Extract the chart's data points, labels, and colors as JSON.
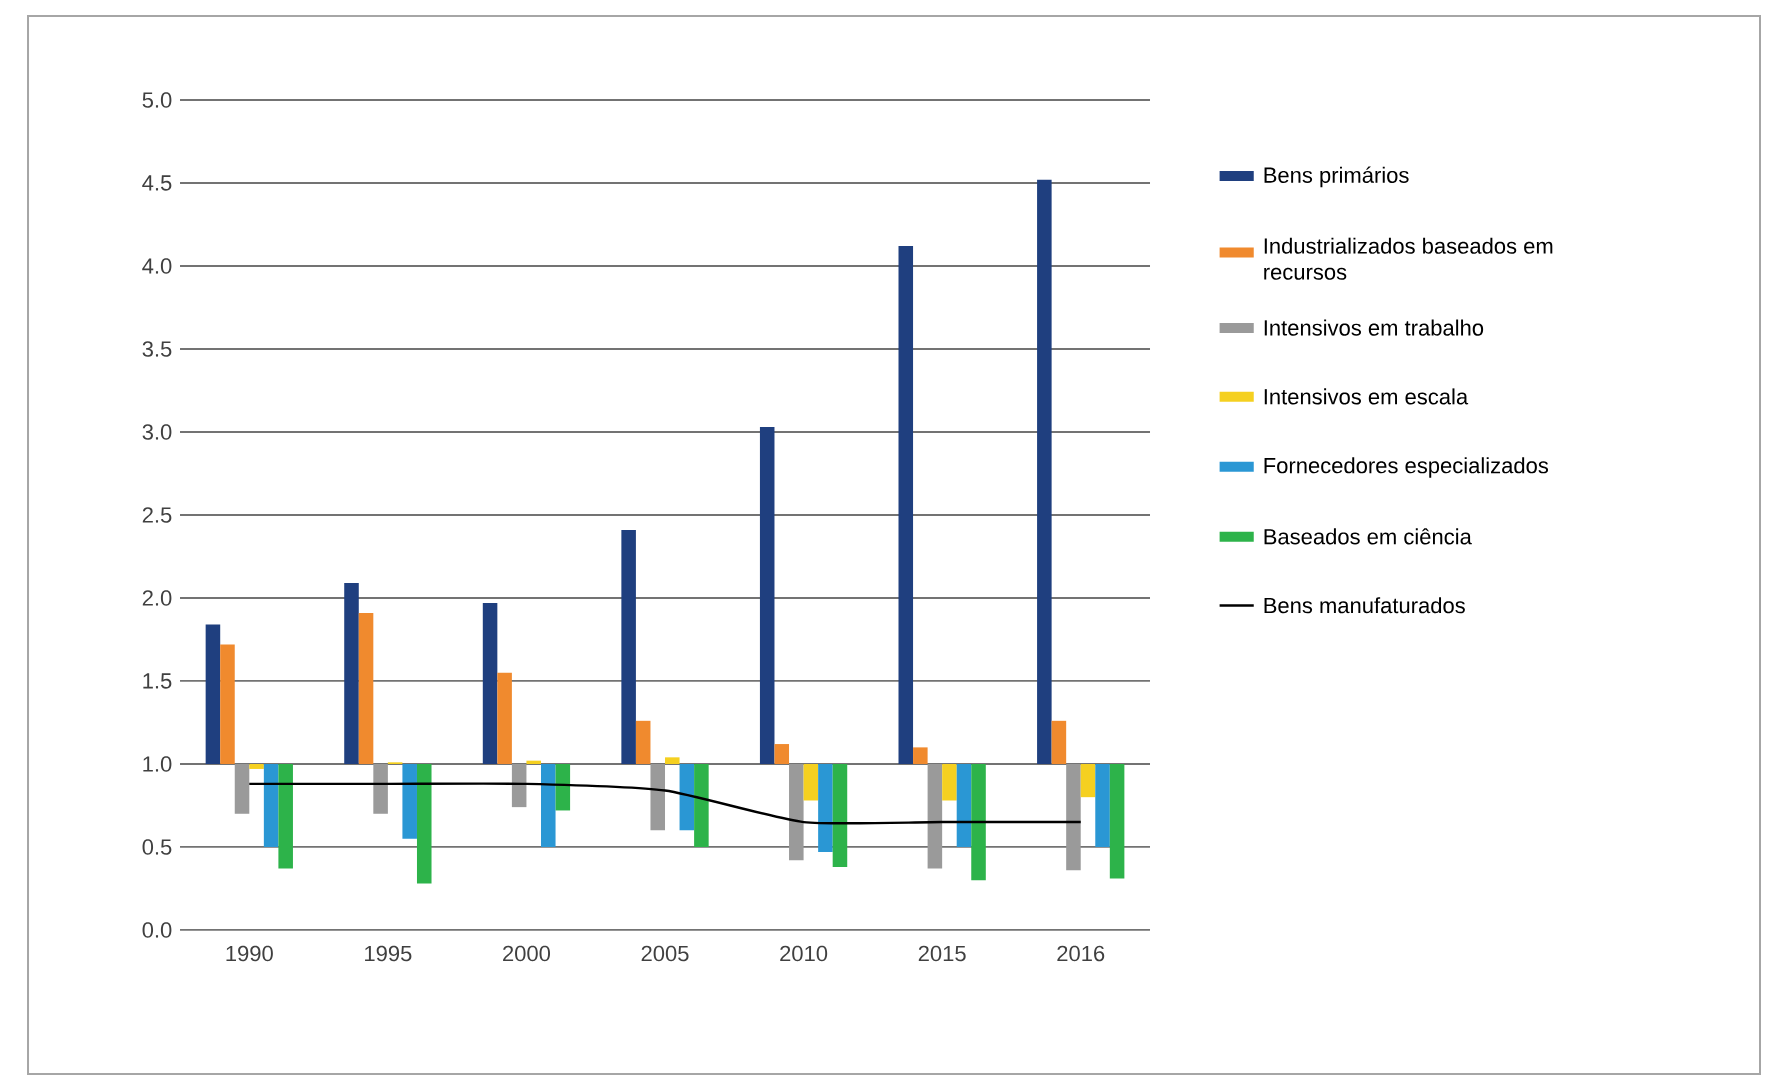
{
  "chart_data": {
    "type": "bar",
    "categories": [
      "1990",
      "1995",
      "2000",
      "2005",
      "2010",
      "2015",
      "2016"
    ],
    "ylim": [
      0,
      5
    ],
    "yticks": [
      {
        "value": 0,
        "label": "0.0"
      },
      {
        "value": 0.5,
        "label": "0.5"
      },
      {
        "value": 1,
        "label": "1.0"
      },
      {
        "value": 1.5,
        "label": "1.5"
      },
      {
        "value": 2,
        "label": "2.0"
      },
      {
        "value": 2.5,
        "label": "2.5"
      },
      {
        "value": 3,
        "label": "3.0"
      },
      {
        "value": 3.5,
        "label": "3.5"
      },
      {
        "value": 4,
        "label": "4.0"
      },
      {
        "value": 4.5,
        "label": "4.5"
      },
      {
        "value": 5,
        "label": "5.0"
      }
    ],
    "grid": "y",
    "legend": "right",
    "series": [
      {
        "name": "Bens primários",
        "color": "#1f3f7f",
        "base": [
          1,
          1,
          1,
          1,
          1,
          1,
          1
        ],
        "values": [
          0.84,
          1.09,
          0.97,
          1.41,
          2.03,
          3.12,
          3.52
        ]
      },
      {
        "name": "Industrializados baseados em recursos",
        "color": "#f08a2e",
        "base": [
          1,
          1,
          1,
          1,
          1,
          1,
          1
        ],
        "values": [
          0.72,
          0.91,
          0.55,
          0.26,
          0.12,
          0.1,
          0.26
        ]
      },
      {
        "name": "Intensivos em trabalho",
        "color": "#9a9a9a",
        "base": [
          1,
          1,
          1,
          1,
          1,
          1,
          1
        ],
        "values": [
          -0.3,
          -0.3,
          -0.26,
          -0.4,
          -0.58,
          -0.63,
          -0.64
        ]
      },
      {
        "name": "Intensivos em escala",
        "color": "#f5d020",
        "base": [
          1,
          1,
          1,
          1,
          1,
          1,
          1
        ],
        "values": [
          -0.03,
          0.01,
          0.02,
          0.04,
          -0.22,
          -0.22,
          -0.2
        ]
      },
      {
        "name": "Fornecedores especializados",
        "color": "#2a97d4",
        "base": [
          1,
          1,
          1,
          1,
          1,
          1,
          1
        ],
        "values": [
          -0.5,
          -0.45,
          -0.5,
          -0.4,
          -0.53,
          -0.5,
          -0.5
        ]
      },
      {
        "name": "Baseados em ciência",
        "color": "#2db34a",
        "base": [
          1,
          1,
          1,
          1,
          1,
          1,
          1
        ],
        "values": [
          -0.63,
          -0.72,
          -0.28,
          -0.5,
          -0.62,
          -0.7,
          -0.69
        ]
      },
      {
        "name": "Bens manufaturados",
        "type": "line",
        "color": "#000000",
        "values": [
          0.88,
          0.88,
          0.88,
          0.84,
          0.65,
          0.65,
          0.65
        ]
      }
    ]
  }
}
